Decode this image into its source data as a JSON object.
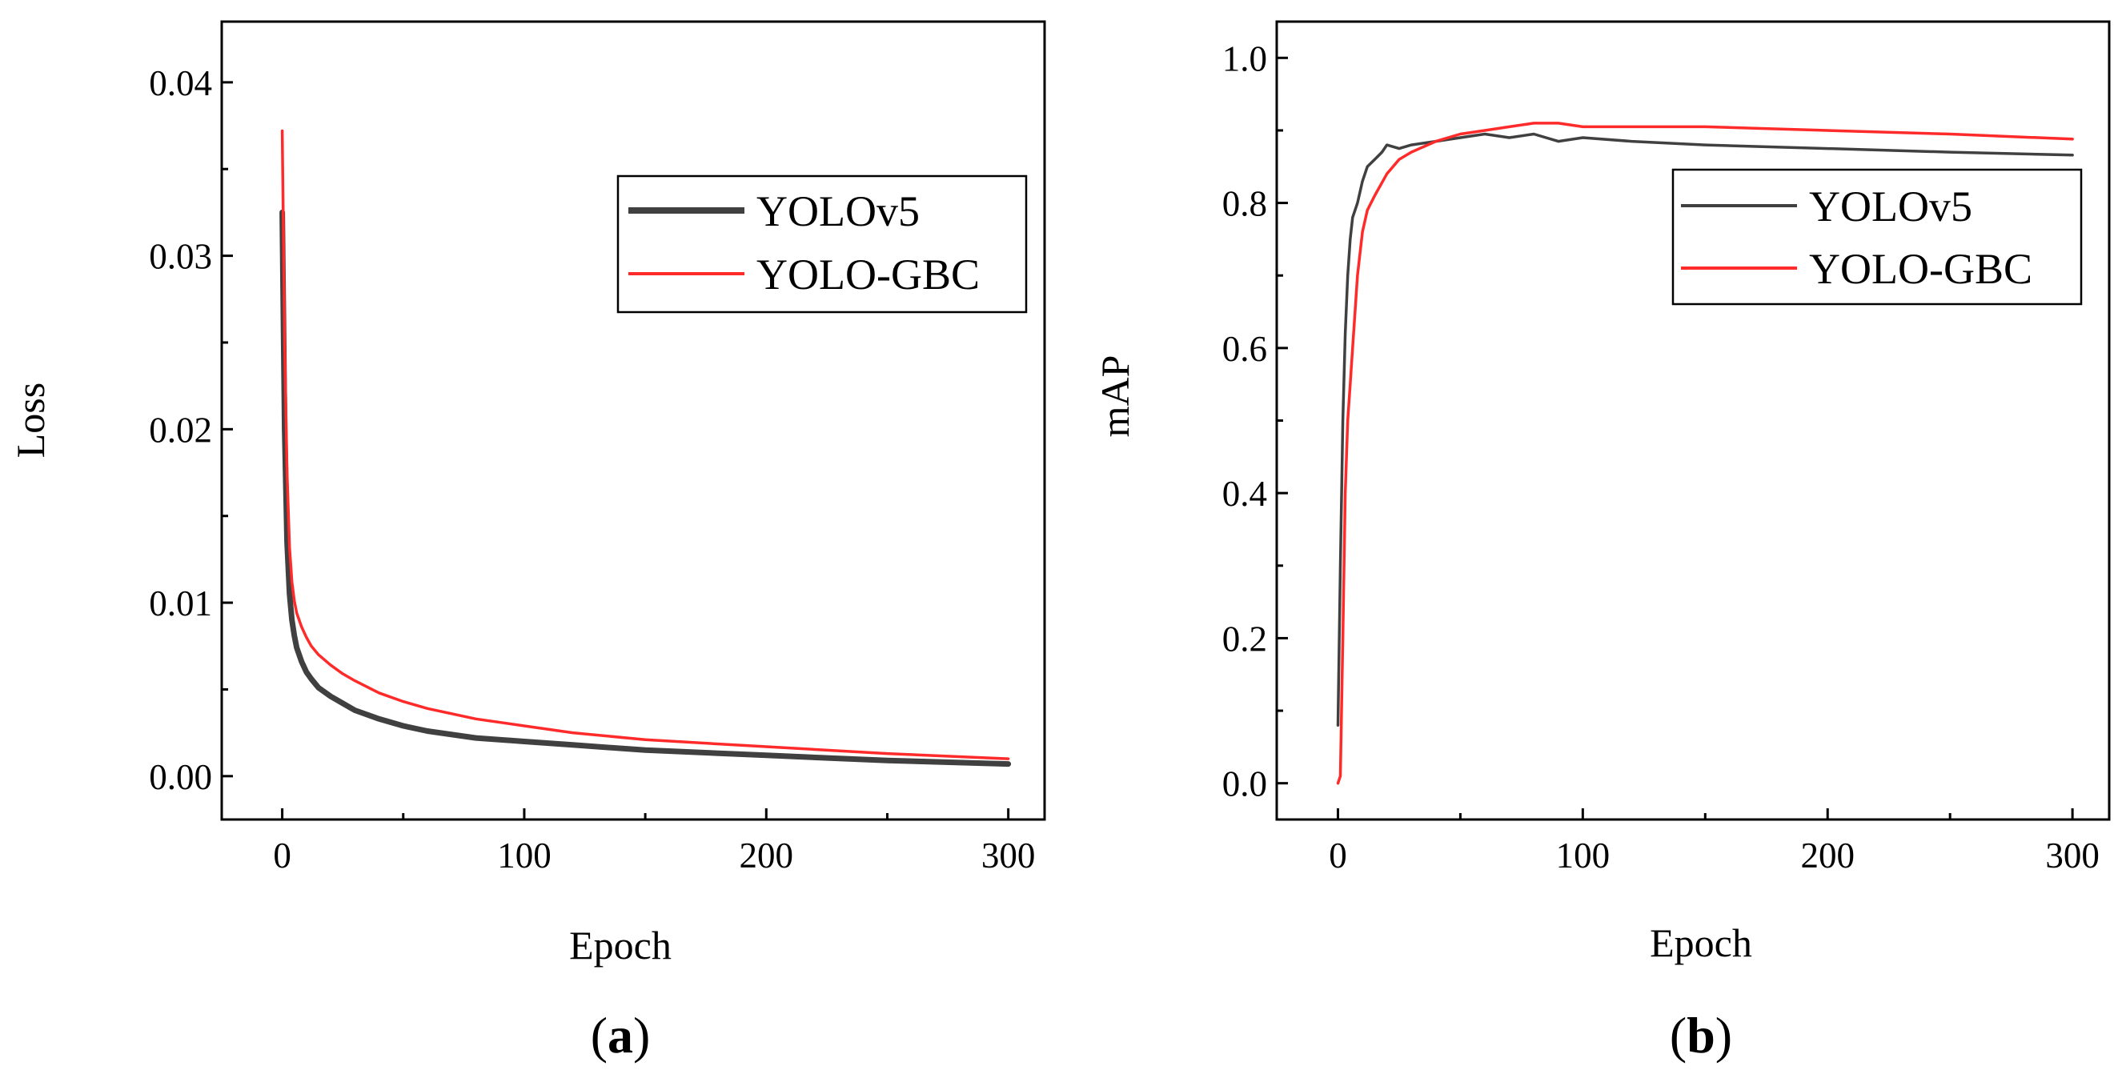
{
  "chart_data": [
    {
      "type": "line",
      "panel_label": "a",
      "xlabel": "Epoch",
      "ylabel": "Loss",
      "xlim": [
        -25,
        315
      ],
      "ylim": [
        -0.0025,
        0.0435
      ],
      "xticks": [
        0,
        100,
        200,
        300
      ],
      "xtick_labels": [
        "0",
        "100",
        "200",
        "300"
      ],
      "yticks": [
        0.0,
        0.01,
        0.02,
        0.03,
        0.04
      ],
      "ytick_labels": [
        "0.00",
        "0.01",
        "0.02",
        "0.03",
        "0.04"
      ],
      "grid": false,
      "legend_position": "upper-right",
      "series": [
        {
          "name": "YOLOv5",
          "color": "#404040",
          "x": [
            0,
            1,
            2,
            3,
            4,
            5,
            6,
            8,
            10,
            12,
            15,
            20,
            25,
            30,
            40,
            50,
            60,
            80,
            100,
            120,
            150,
            200,
            250,
            300
          ],
          "y": [
            0.0325,
            0.02,
            0.0135,
            0.0105,
            0.009,
            0.0081,
            0.0074,
            0.0066,
            0.006,
            0.0056,
            0.0051,
            0.0046,
            0.0042,
            0.0038,
            0.0033,
            0.0029,
            0.0026,
            0.0022,
            0.002,
            0.0018,
            0.0015,
            0.0012,
            0.0009,
            0.0007
          ]
        },
        {
          "name": "YOLO-GBC",
          "color": "#ff2a2a",
          "x": [
            0,
            1,
            2,
            3,
            4,
            5,
            6,
            8,
            10,
            12,
            15,
            20,
            25,
            30,
            40,
            50,
            60,
            80,
            100,
            120,
            150,
            200,
            250,
            300
          ],
          "y": [
            0.0372,
            0.025,
            0.0175,
            0.0132,
            0.0112,
            0.0101,
            0.0094,
            0.0086,
            0.008,
            0.0075,
            0.007,
            0.0064,
            0.0059,
            0.0055,
            0.0048,
            0.0043,
            0.0039,
            0.0033,
            0.0029,
            0.0025,
            0.0021,
            0.0017,
            0.0013,
            0.001
          ]
        }
      ]
    },
    {
      "type": "line",
      "panel_label": "b",
      "xlabel": "Epoch",
      "ylabel": "mAP",
      "xlim": [
        -25,
        315
      ],
      "ylim": [
        -0.05,
        1.05
      ],
      "xticks": [
        0,
        100,
        200,
        300
      ],
      "xtick_labels": [
        "0",
        "100",
        "200",
        "300"
      ],
      "yticks": [
        0.0,
        0.2,
        0.4,
        0.6,
        0.8,
        1.0
      ],
      "ytick_labels": [
        "0.0",
        "0.2",
        "0.4",
        "0.6",
        "0.8",
        "1.0"
      ],
      "grid": false,
      "legend_position": "upper-right",
      "series": [
        {
          "name": "YOLOv5",
          "color": "#404040",
          "x": [
            0,
            1,
            2,
            3,
            4,
            5,
            6,
            8,
            10,
            12,
            15,
            18,
            20,
            25,
            30,
            40,
            50,
            60,
            70,
            80,
            90,
            100,
            120,
            150,
            200,
            250,
            300
          ],
          "y": [
            0.08,
            0.3,
            0.5,
            0.62,
            0.7,
            0.75,
            0.78,
            0.8,
            0.83,
            0.85,
            0.86,
            0.87,
            0.88,
            0.875,
            0.88,
            0.885,
            0.89,
            0.895,
            0.89,
            0.895,
            0.885,
            0.89,
            0.885,
            0.88,
            0.875,
            0.87,
            0.866
          ]
        },
        {
          "name": "YOLO-GBC",
          "color": "#ff2a2a",
          "x": [
            0,
            1,
            2,
            3,
            4,
            5,
            6,
            8,
            10,
            12,
            15,
            20,
            25,
            30,
            40,
            50,
            60,
            70,
            80,
            90,
            100,
            120,
            150,
            200,
            250,
            300
          ],
          "y": [
            0.0,
            0.01,
            0.2,
            0.4,
            0.5,
            0.55,
            0.6,
            0.7,
            0.76,
            0.79,
            0.81,
            0.84,
            0.86,
            0.87,
            0.885,
            0.895,
            0.9,
            0.905,
            0.91,
            0.91,
            0.905,
            0.905,
            0.905,
            0.9,
            0.895,
            0.888
          ]
        }
      ]
    }
  ]
}
